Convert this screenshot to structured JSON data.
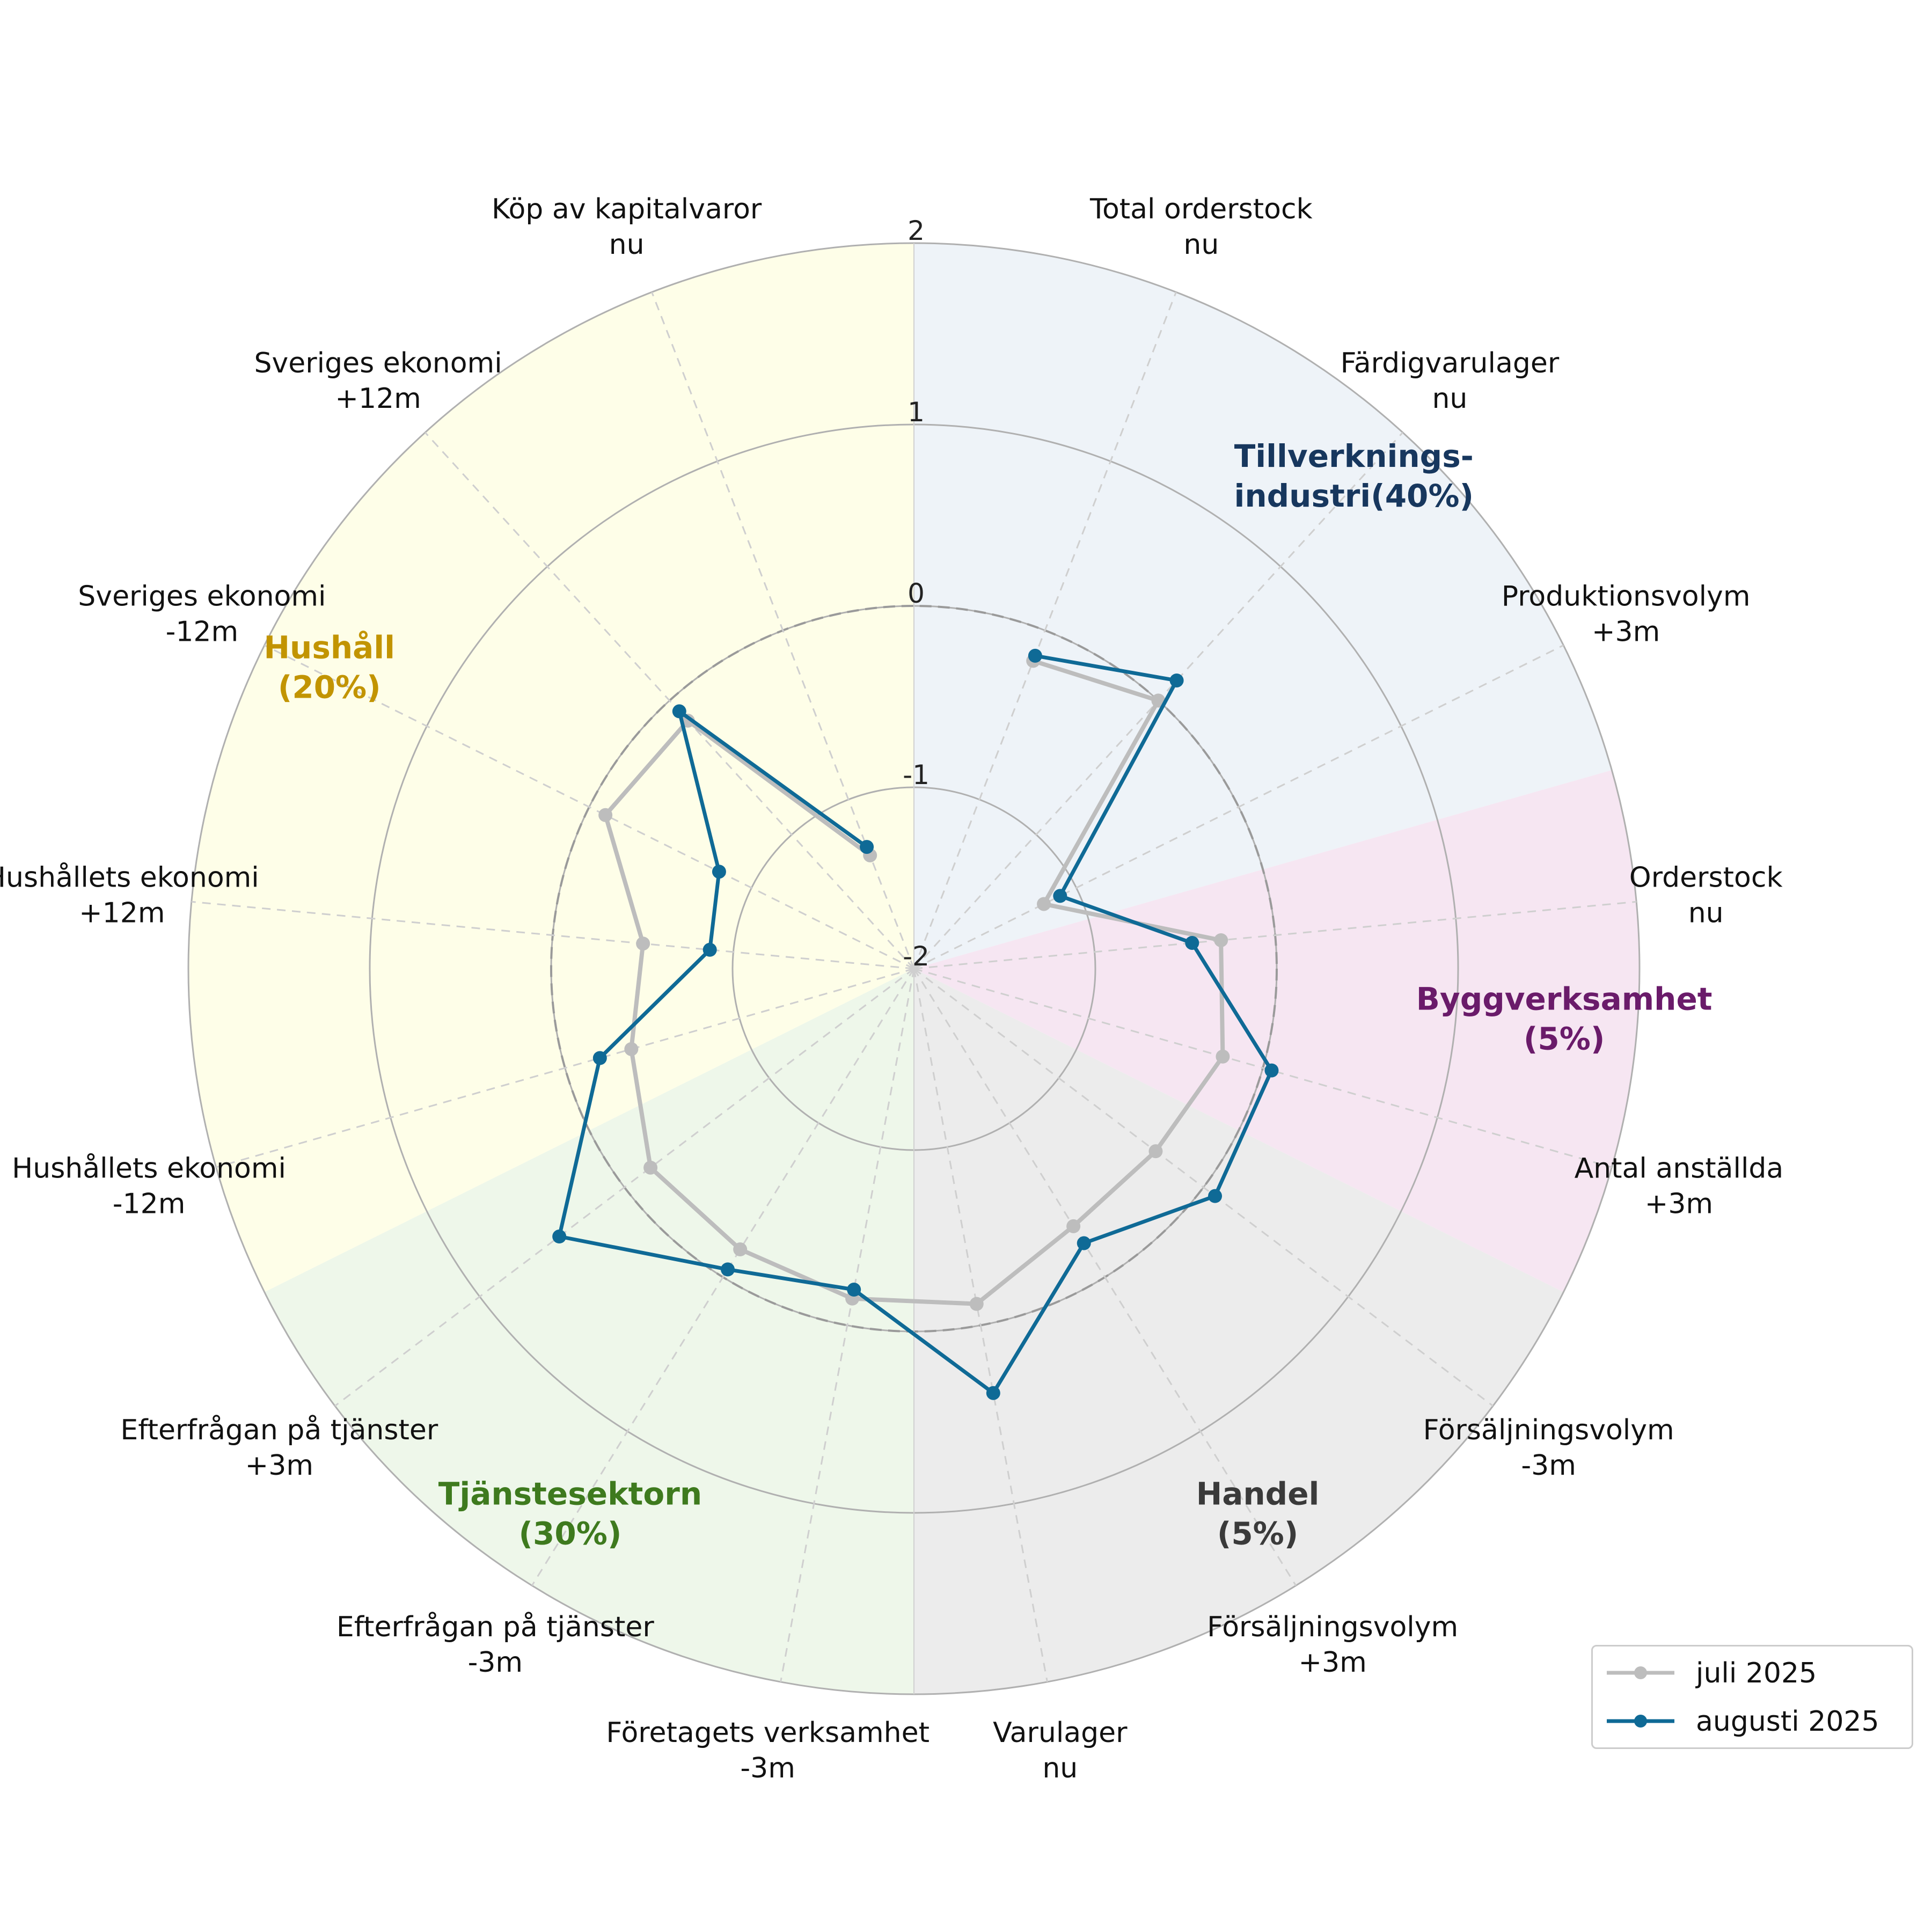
{
  "chart_data": {
    "type": "radar",
    "title": "",
    "radial_ticks": [
      "-2",
      "-1",
      "0",
      "1",
      "2"
    ],
    "rlim": [
      -2,
      2
    ],
    "zero_reference_dashed": true,
    "axes": [
      {
        "label": "Total orderstock\nnu",
        "sector": "tillverkning"
      },
      {
        "label": "Färdigvarulager\nnu",
        "sector": "tillverkning"
      },
      {
        "label": "Produktionsvolym\n+3m",
        "sector": "tillverkning"
      },
      {
        "label": "Orderstock\nnu",
        "sector": "bygg"
      },
      {
        "label": "Antal anställda\n+3m",
        "sector": "bygg"
      },
      {
        "label": "Försäljningsvolym\n-3m",
        "sector": "handel"
      },
      {
        "label": "Försäljningsvolym\n+3m",
        "sector": "handel"
      },
      {
        "label": "Varulager\nnu",
        "sector": "handel"
      },
      {
        "label": "Företagets verksamhet\n-3m",
        "sector": "tjanst"
      },
      {
        "label": "Efterfrågan på tjänster\n-3m",
        "sector": "tjanst"
      },
      {
        "label": "Efterfrågan på tjänster\n+3m",
        "sector": "tjanst"
      },
      {
        "label": "Hushållets ekonomi\n-12m",
        "sector": "hushall"
      },
      {
        "label": "Hushållets ekonomi\n+12m",
        "sector": "hushall"
      },
      {
        "label": "Sveriges ekonomi\n-12m",
        "sector": "hushall"
      },
      {
        "label": "Sveriges ekonomi\n+12m",
        "sector": "hushall"
      },
      {
        "label": "Köp av kapitalvaror\nnu",
        "sector": "hushall"
      }
    ],
    "sectors": [
      {
        "id": "tillverkning",
        "label": "Tillverknings-\nindustri(40%)",
        "color": "#17375e",
        "fill": "#eef3f8",
        "span_axes": [
          0,
          2
        ]
      },
      {
        "id": "bygg",
        "label": "Byggverksamhet\n(5%)",
        "color": "#6a1b6a",
        "fill": "#f6e6f2",
        "span_axes": [
          3,
          4
        ]
      },
      {
        "id": "handel",
        "label": "Handel\n(5%)",
        "color": "#3a3a3a",
        "fill": "#ececec",
        "span_axes": [
          5,
          7
        ]
      },
      {
        "id": "tjanst",
        "label": "Tjänstesektorn\n(30%)",
        "color": "#3e7a1e",
        "fill": "#eef7ea",
        "span_axes": [
          8,
          10
        ]
      },
      {
        "id": "hushall",
        "label": "Hushåll\n(20%)",
        "color": "#c29400",
        "fill": "#fefee8",
        "span_axes": [
          11,
          15
        ]
      }
    ],
    "series": [
      {
        "name": "juli 2025",
        "color": "#bdbdbd",
        "values": [
          -0.18,
          0.0,
          -1.2,
          -0.3,
          -0.23,
          -0.33,
          -0.33,
          -0.12,
          -0.15,
          -0.18,
          -0.18,
          -0.38,
          -0.5,
          -0.1,
          -0.15,
          -1.33
        ]
      },
      {
        "name": "augusti 2025",
        "color": "#0f6a96",
        "values": [
          -0.15,
          0.15,
          -1.1,
          -0.46,
          0.05,
          0.08,
          -0.22,
          0.38,
          -0.2,
          -0.05,
          0.45,
          -0.2,
          -0.87,
          -0.8,
          -0.08,
          -1.28
        ]
      }
    ],
    "legend": {
      "position": "bottom-right",
      "entries": [
        "juli 2025",
        "augusti 2025"
      ]
    },
    "grid": true
  }
}
